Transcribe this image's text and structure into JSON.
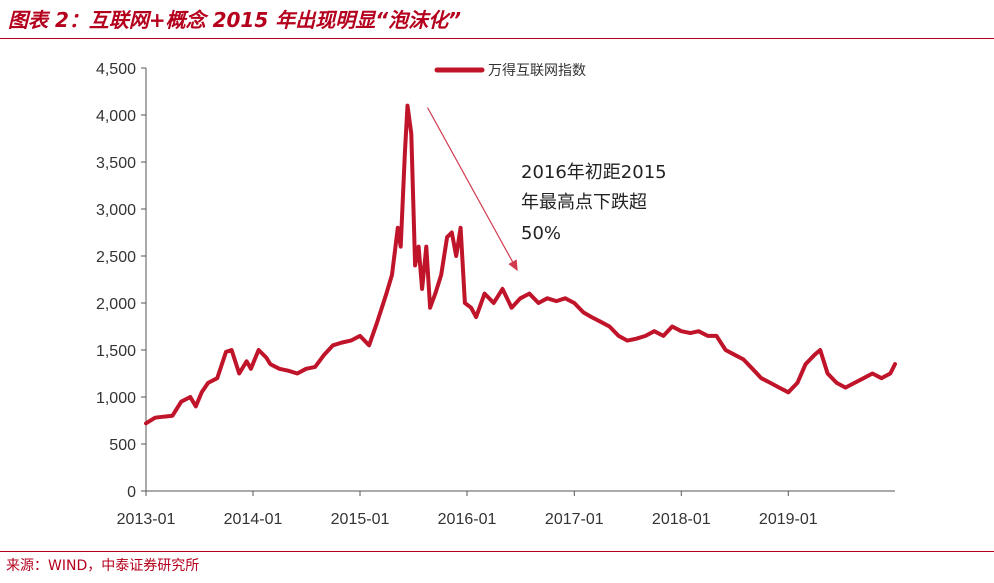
{
  "figure": {
    "title": "图表 2：互联网+概念 2015 年出现明显“泡沫化”",
    "source": "来源：WIND，中泰证券研究所"
  },
  "chart_data": {
    "type": "line",
    "title": "",
    "xlabel": "",
    "ylabel": "",
    "ylim": [
      0,
      4500
    ],
    "y_ticks": [
      "0",
      "500",
      "1,000",
      "1,500",
      "2,000",
      "2,500",
      "3,000",
      "3,500",
      "4,000",
      "4,500"
    ],
    "y_tick_values": [
      0,
      500,
      1000,
      1500,
      2000,
      2500,
      3000,
      3500,
      4000,
      4500
    ],
    "x_ticks": [
      "2013-01",
      "2014-01",
      "2015-01",
      "2016-01",
      "2017-01",
      "2018-01",
      "2019-01"
    ],
    "x_tick_values": [
      "2013-01-01",
      "2014-01-01",
      "2015-01-01",
      "2016-01-01",
      "2017-01-01",
      "2018-01-01",
      "2019-01-01"
    ],
    "xlim": [
      "2013-01-01",
      "2019-12-31"
    ],
    "grid": false,
    "legend_position": "top-center",
    "line_color": "#c0142a",
    "series": [
      {
        "name": "万得互联网指数",
        "x": [
          "2013-01-01",
          "2013-02-01",
          "2013-03-01",
          "2013-04-01",
          "2013-05-01",
          "2013-06-01",
          "2013-06-20",
          "2013-07-10",
          "2013-08-01",
          "2013-09-01",
          "2013-10-01",
          "2013-10-20",
          "2013-11-15",
          "2013-12-10",
          "2013-12-25",
          "2014-01-20",
          "2014-02-15",
          "2014-03-01",
          "2014-04-01",
          "2014-05-01",
          "2014-06-01",
          "2014-07-01",
          "2014-08-01",
          "2014-09-01",
          "2014-10-01",
          "2014-11-01",
          "2014-12-01",
          "2015-01-01",
          "2015-02-01",
          "2015-03-01",
          "2015-04-01",
          "2015-04-20",
          "2015-05-10",
          "2015-05-20",
          "2015-06-03",
          "2015-06-12",
          "2015-06-25",
          "2015-07-08",
          "2015-07-20",
          "2015-08-01",
          "2015-08-15",
          "2015-08-28",
          "2015-09-15",
          "2015-10-05",
          "2015-10-25",
          "2015-11-10",
          "2015-11-25",
          "2015-12-10",
          "2015-12-25",
          "2016-01-15",
          "2016-02-01",
          "2016-03-01",
          "2016-04-01",
          "2016-05-01",
          "2016-06-01",
          "2016-07-01",
          "2016-08-01",
          "2016-09-01",
          "2016-10-01",
          "2016-11-01",
          "2016-12-01",
          "2017-01-01",
          "2017-02-01",
          "2017-03-01",
          "2017-04-01",
          "2017-05-01",
          "2017-06-01",
          "2017-07-01",
          "2017-08-01",
          "2017-09-01",
          "2017-10-01",
          "2017-11-01",
          "2017-12-01",
          "2018-01-01",
          "2018-02-01",
          "2018-03-01",
          "2018-04-01",
          "2018-05-01",
          "2018-06-01",
          "2018-07-01",
          "2018-08-01",
          "2018-09-01",
          "2018-10-01",
          "2018-11-01",
          "2018-12-01",
          "2019-01-01",
          "2019-02-01",
          "2019-03-01",
          "2019-04-01",
          "2019-04-20",
          "2019-05-15",
          "2019-06-15",
          "2019-07-15",
          "2019-08-15",
          "2019-09-15",
          "2019-10-15",
          "2019-11-15",
          "2019-12-15",
          "2019-12-31"
        ],
        "values": [
          720,
          780,
          790,
          800,
          950,
          1000,
          900,
          1050,
          1150,
          1200,
          1480,
          1500,
          1250,
          1380,
          1300,
          1500,
          1420,
          1350,
          1300,
          1280,
          1250,
          1300,
          1320,
          1450,
          1550,
          1580,
          1600,
          1650,
          1550,
          1800,
          2100,
          2300,
          2800,
          2600,
          3600,
          4100,
          3800,
          2400,
          2600,
          2150,
          2600,
          1950,
          2100,
          2300,
          2700,
          2750,
          2500,
          2800,
          2000,
          1950,
          1850,
          2100,
          2000,
          2150,
          1950,
          2050,
          2100,
          2000,
          2050,
          2020,
          2050,
          2000,
          1900,
          1850,
          1800,
          1750,
          1650,
          1600,
          1620,
          1650,
          1700,
          1650,
          1750,
          1700,
          1680,
          1700,
          1650,
          1650,
          1500,
          1450,
          1400,
          1300,
          1200,
          1150,
          1100,
          1050,
          1150,
          1350,
          1450,
          1500,
          1250,
          1150,
          1100,
          1150,
          1200,
          1250,
          1200,
          1250,
          1350
        ]
      }
    ],
    "annotation": {
      "lines": [
        "2016年初距2015",
        "年最高点下跌超",
        "50%"
      ],
      "arrow_from": {
        "x": "2015-06-12",
        "y": 4080
      },
      "arrow_to": {
        "x": "2016-06-20",
        "y": 2350
      }
    }
  }
}
